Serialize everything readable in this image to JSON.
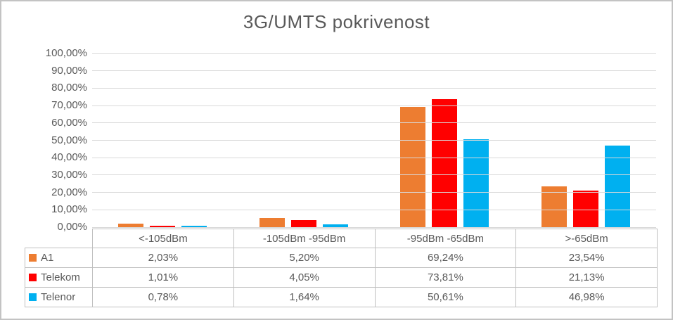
{
  "chart_data": {
    "type": "bar",
    "title": "3G/UMTS pokrivenost",
    "categories": [
      "<-105dBm",
      "-105dBm -95dBm",
      "-95dBm -65dBm",
      ">-65dBm"
    ],
    "series": [
      {
        "name": "A1",
        "color": "#ED7D31",
        "values": [
          2.03,
          5.2,
          69.24,
          23.54
        ],
        "value_labels": [
          "2,03%",
          "5,20%",
          "69,24%",
          "23,54%"
        ]
      },
      {
        "name": "Telekom",
        "color": "#FF0000",
        "values": [
          1.01,
          4.05,
          73.81,
          21.13
        ],
        "value_labels": [
          "1,01%",
          "4,05%",
          "73,81%",
          "21,13%"
        ]
      },
      {
        "name": "Telenor",
        "color": "#00B0F0",
        "values": [
          0.78,
          1.64,
          50.61,
          46.98
        ],
        "value_labels": [
          "0,78%",
          "1,64%",
          "50,61%",
          "46,98%"
        ]
      }
    ],
    "ylim": [
      0,
      100
    ],
    "ytick_step": 10,
    "ytick_labels": [
      "100,00%",
      "90,00%",
      "80,00%",
      "70,00%",
      "60,00%",
      "50,00%",
      "40,00%",
      "30,00%",
      "20,00%",
      "10,00%",
      "0,00%"
    ],
    "grid": true,
    "legend_position": "data-table-left",
    "has_data_table": true,
    "style_colors": {
      "gridline": "#D9D9D9",
      "table_border": "#BFBFBF",
      "text": "#595959"
    }
  }
}
